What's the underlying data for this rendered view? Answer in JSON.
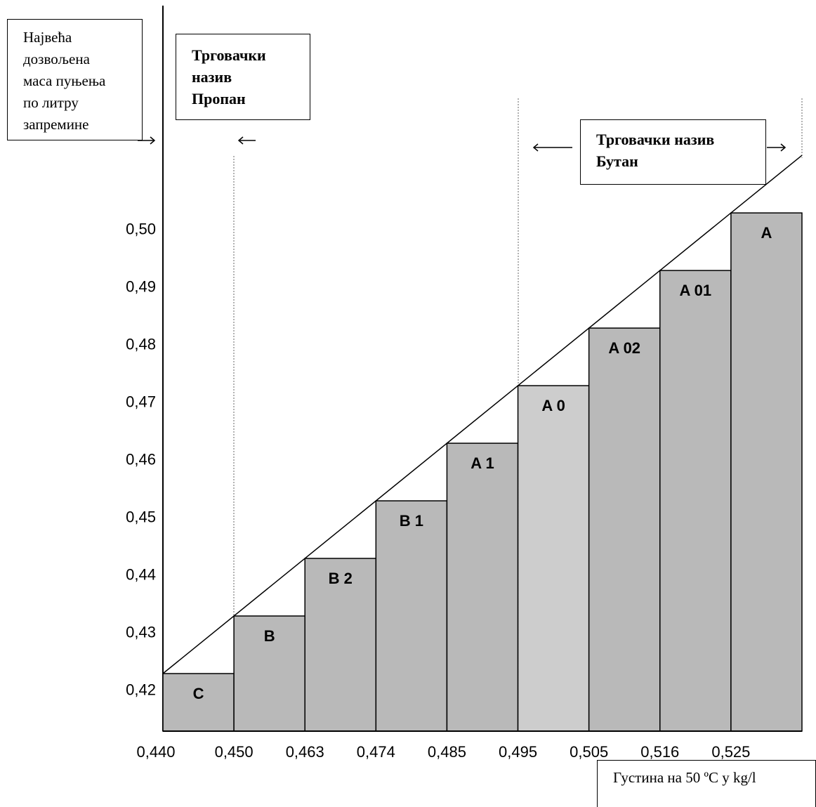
{
  "chart_data": {
    "type": "bar",
    "y_axis_label": [
      "Највећа",
      "дозвољена",
      "маса пуњења",
      "по литру",
      "запремине"
    ],
    "x_axis_label": "Густина на 50 ºC у kg/l",
    "propane_label": [
      "Трговачки",
      "назив",
      "Пропан"
    ],
    "butane_label": [
      "Трговачки назив",
      "Бутан"
    ],
    "categories": [
      "C",
      "B",
      "B 2",
      "B 1",
      "A 1",
      "A 0",
      "A 02",
      "A 01",
      "A"
    ],
    "values": [
      0.423,
      0.433,
      0.443,
      0.453,
      0.463,
      0.473,
      0.483,
      0.493,
      0.503
    ],
    "colors": [
      "#b3b3b3",
      "#b3b3b3",
      "#b3b3b3",
      "#b3b3b3",
      "#b3b3b3",
      "#c9c9c9",
      "#b3b3b3",
      "#b3b3b3",
      "#b3b3b3"
    ],
    "xticks": [
      {
        "value": 0.44,
        "label": "0,440"
      },
      {
        "value": 0.45,
        "label": "0,450"
      },
      {
        "value": 0.463,
        "label": "0,463"
      },
      {
        "value": 0.474,
        "label": "0,474"
      },
      {
        "value": 0.485,
        "label": "0,485"
      },
      {
        "value": 0.495,
        "label": "0,495"
      },
      {
        "value": 0.505,
        "label": "0,505"
      },
      {
        "value": 0.516,
        "label": "0,516"
      },
      {
        "value": 0.525,
        "label": "0,525"
      }
    ],
    "ylim": [
      0.413,
      0.539
    ],
    "yticks": [
      {
        "value": 0.42,
        "label": "0,42"
      },
      {
        "value": 0.43,
        "label": "0,43"
      },
      {
        "value": 0.44,
        "label": "0,44"
      },
      {
        "value": 0.45,
        "label": "0,45"
      },
      {
        "value": 0.46,
        "label": "0,46"
      },
      {
        "value": 0.47,
        "label": "0,47"
      },
      {
        "value": 0.48,
        "label": "0,48"
      },
      {
        "value": 0.49,
        "label": "0,49"
      },
      {
        "value": 0.5,
        "label": "0,50"
      }
    ]
  }
}
